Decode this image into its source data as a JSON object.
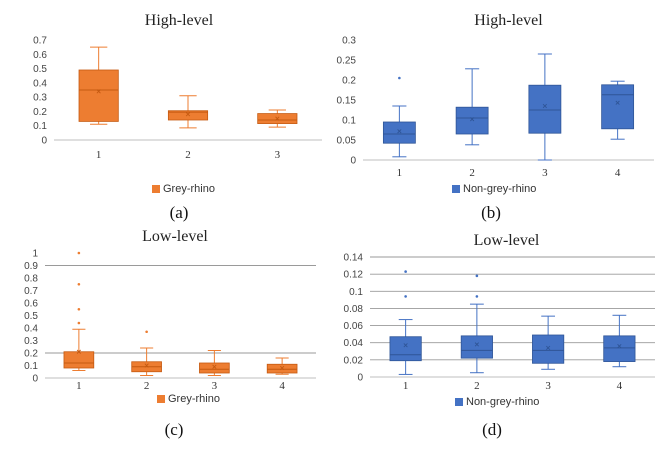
{
  "chart_data": [
    {
      "type": "box",
      "title": "High-level",
      "caption": "(a)",
      "categories": [
        "1",
        "2",
        "3"
      ],
      "series": [
        {
          "name": "Grey-rhino",
          "color": "#ED7D31",
          "stroke": "#C55A11",
          "boxes": [
            {
              "min": 0.11,
              "q1": 0.13,
              "median": 0.35,
              "q3": 0.49,
              "max": 0.65,
              "mean": 0.34
            },
            {
              "min": 0.085,
              "q1": 0.14,
              "median": 0.195,
              "q3": 0.205,
              "max": 0.31,
              "mean": 0.18
            },
            {
              "min": 0.09,
              "q1": 0.115,
              "median": 0.14,
              "q3": 0.185,
              "max": 0.21,
              "mean": 0.15
            }
          ]
        }
      ],
      "yticks": [
        "0",
        "0.1",
        "0.2",
        "0.3",
        "0.4",
        "0.5",
        "0.6",
        "0.7"
      ],
      "ylim": [
        0,
        0.7
      ],
      "grid": false,
      "legend": "bottom-center"
    },
    {
      "type": "box",
      "title": "High-level",
      "caption": "(b)",
      "categories": [
        "1",
        "2",
        "3",
        "4"
      ],
      "series": [
        {
          "name": "Non-grey-rhino",
          "color": "#4472C4",
          "stroke": "#2F5597",
          "boxes": [
            {
              "min": 0.008,
              "q1": 0.042,
              "median": 0.065,
              "q3": 0.095,
              "max": 0.135,
              "mean": 0.072,
              "outliers": [
                0.205
              ]
            },
            {
              "min": 0.038,
              "q1": 0.065,
              "median": 0.105,
              "q3": 0.132,
              "max": 0.228,
              "mean": 0.102
            },
            {
              "min": 0.0,
              "q1": 0.067,
              "median": 0.125,
              "q3": 0.187,
              "max": 0.265,
              "mean": 0.135
            },
            {
              "min": 0.052,
              "q1": 0.078,
              "median": 0.163,
              "q3": 0.188,
              "max": 0.197,
              "mean": 0.143
            }
          ]
        }
      ],
      "yticks": [
        "0",
        "0.05",
        "0.1",
        "0.15",
        "0.2",
        "0.25",
        "0.3"
      ],
      "ylim": [
        0,
        0.3
      ],
      "grid": false,
      "legend": "bottom-center"
    },
    {
      "type": "box",
      "title": "Low-level",
      "caption": "(c)",
      "categories": [
        "1",
        "2",
        "3",
        "4"
      ],
      "series": [
        {
          "name": "Grey-rhino",
          "color": "#ED7D31",
          "stroke": "#C55A11",
          "boxes": [
            {
              "min": 0.06,
              "q1": 0.08,
              "median": 0.12,
              "q3": 0.21,
              "max": 0.39,
              "mean": 0.21,
              "outliers": [
                0.44,
                0.55,
                0.75,
                1.0
              ]
            },
            {
              "min": 0.02,
              "q1": 0.05,
              "median": 0.09,
              "q3": 0.13,
              "max": 0.24,
              "mean": 0.1,
              "outliers": [
                0.37
              ]
            },
            {
              "min": 0.02,
              "q1": 0.04,
              "median": 0.07,
              "q3": 0.12,
              "max": 0.22,
              "mean": 0.09
            },
            {
              "min": 0.03,
              "q1": 0.04,
              "median": 0.07,
              "q3": 0.11,
              "max": 0.16,
              "mean": 0.08
            }
          ]
        }
      ],
      "yticks": [
        "0",
        "0.1",
        "0.2",
        "0.3",
        "0.4",
        "0.5",
        "0.6",
        "0.7",
        "0.8",
        "0.9",
        "1"
      ],
      "ylim": [
        0,
        1
      ],
      "grid": true,
      "gridlines": [
        0.2,
        0.9
      ],
      "legend": "bottom-center"
    },
    {
      "type": "box",
      "title": "Low-level",
      "caption": "(d)",
      "categories": [
        "1",
        "2",
        "3",
        "4"
      ],
      "series": [
        {
          "name": "Non-grey-rhino",
          "color": "#4472C4",
          "stroke": "#2F5597",
          "boxes": [
            {
              "min": 0.003,
              "q1": 0.019,
              "median": 0.026,
              "q3": 0.047,
              "max": 0.067,
              "mean": 0.037,
              "outliers": [
                0.094,
                0.123
              ]
            },
            {
              "min": 0.005,
              "q1": 0.022,
              "median": 0.031,
              "q3": 0.048,
              "max": 0.085,
              "mean": 0.038,
              "outliers": [
                0.094,
                0.118
              ]
            },
            {
              "min": 0.009,
              "q1": 0.016,
              "median": 0.031,
              "q3": 0.049,
              "max": 0.071,
              "mean": 0.034
            },
            {
              "min": 0.012,
              "q1": 0.018,
              "median": 0.034,
              "q3": 0.048,
              "max": 0.072,
              "mean": 0.036
            }
          ]
        }
      ],
      "yticks": [
        "0",
        "0.02",
        "0.04",
        "0.06",
        "0.08",
        "0.1",
        "0.12",
        "0.14"
      ],
      "ylim": [
        0,
        0.14
      ],
      "grid": true,
      "legend": "bottom-center"
    }
  ]
}
